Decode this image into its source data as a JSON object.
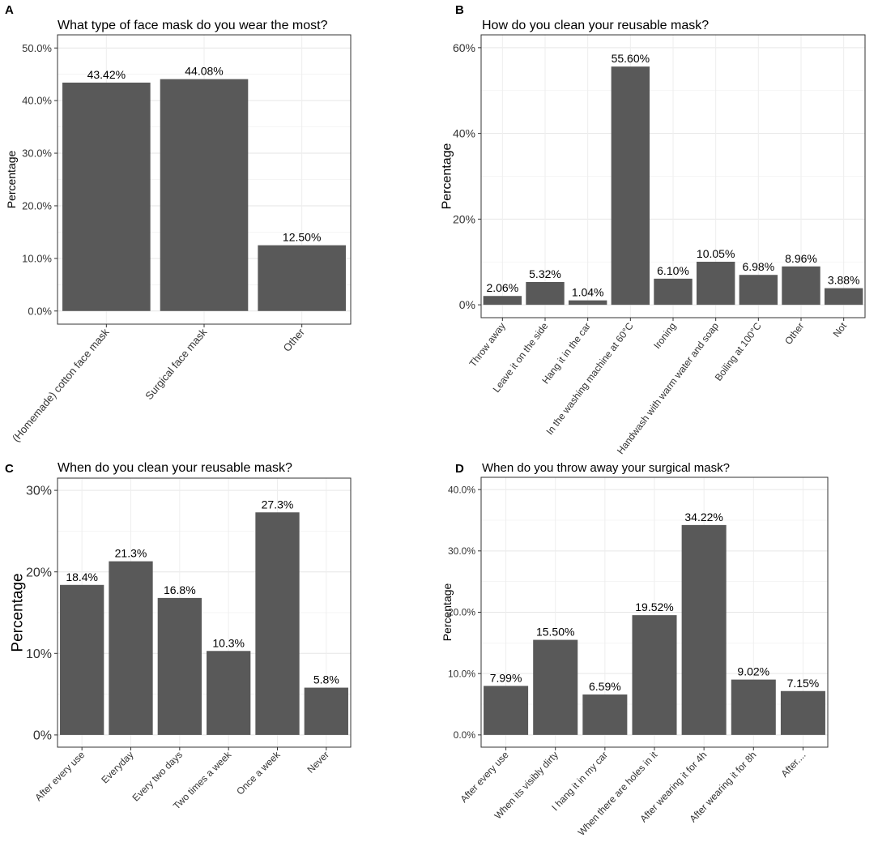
{
  "chart_data": [
    {
      "panel": "A",
      "type": "bar",
      "title": "What type of face mask do you wear the most?",
      "xlabel": "",
      "ylabel": "Percentage",
      "ylim": [
        0,
        50
      ],
      "yticks": [
        0,
        10,
        20,
        30,
        40,
        50
      ],
      "ytick_labels": [
        "0.0%",
        "10.0%",
        "20.0%",
        "30.0%",
        "40.0%",
        "50.0%"
      ],
      "categories": [
        "(Homemade) cotton face mask",
        "Surgical face mask",
        "Other"
      ],
      "values": [
        43.42,
        44.08,
        12.5
      ],
      "value_labels": [
        "43.42%",
        "44.08%",
        "12.50%"
      ],
      "grid": true,
      "bar_color": "#595959"
    },
    {
      "panel": "B",
      "type": "bar",
      "title": "How do you clean your reusable mask?",
      "xlabel": "",
      "ylabel": "Percentage",
      "ylim": [
        0,
        60
      ],
      "yticks": [
        0,
        20,
        40,
        60
      ],
      "ytick_labels": [
        "0%",
        "20%",
        "40%",
        "60%"
      ],
      "categories": [
        "Throw away",
        "Leave it on the side",
        "Hang it in the car",
        "In the washing machine at 60°C",
        "Ironing",
        "Handwash with warm water and soap",
        "Boiling at 100°C",
        "Other",
        "Not"
      ],
      "values": [
        2.06,
        5.32,
        1.04,
        55.6,
        6.1,
        10.05,
        6.98,
        8.96,
        3.88
      ],
      "value_labels": [
        "2.06%",
        "5.32%",
        "1.04%",
        "55.60%",
        "6.10%",
        "10.05%",
        "6.98%",
        "8.96%",
        "3.88%"
      ],
      "grid": true,
      "bar_color": "#595959"
    },
    {
      "panel": "C",
      "type": "bar",
      "title": "When do you clean your reusable mask?",
      "xlabel": "",
      "ylabel": "Percentage",
      "ylim": [
        0,
        30
      ],
      "yticks": [
        0,
        10,
        20,
        30
      ],
      "ytick_labels": [
        "0%",
        "10%",
        "20%",
        "30%"
      ],
      "categories": [
        "After every use",
        "Everyday",
        "Every two days",
        "Two times a week",
        "Once a week",
        "Never"
      ],
      "values": [
        18.4,
        21.3,
        16.8,
        10.3,
        27.3,
        5.8
      ],
      "value_labels": [
        "18.4%",
        "21.3%",
        "16.8%",
        "10.3%",
        "27.3%",
        "5.8%"
      ],
      "grid": true,
      "bar_color": "#595959"
    },
    {
      "panel": "D",
      "type": "bar",
      "title": "When do you throw away your surgical mask?",
      "xlabel": "",
      "ylabel": "Percentage",
      "ylim": [
        0,
        40
      ],
      "yticks": [
        0,
        10,
        20,
        30,
        40
      ],
      "ytick_labels": [
        "0.0%",
        "10.0%",
        "20.0%",
        "30.0%",
        "40.0%"
      ],
      "categories": [
        "After every use",
        "When its visibly dirty",
        "I hang it in my car",
        "When there are holes in it",
        "After wearing it for 4h",
        "After wearing it for 8h",
        "After...."
      ],
      "values": [
        7.99,
        15.5,
        6.59,
        19.52,
        34.22,
        9.02,
        7.15
      ],
      "value_labels": [
        "7.99%",
        "15.50%",
        "6.59%",
        "19.52%",
        "34.22%",
        "9.02%",
        "7.15%"
      ],
      "grid": true,
      "bar_color": "#595959"
    }
  ]
}
